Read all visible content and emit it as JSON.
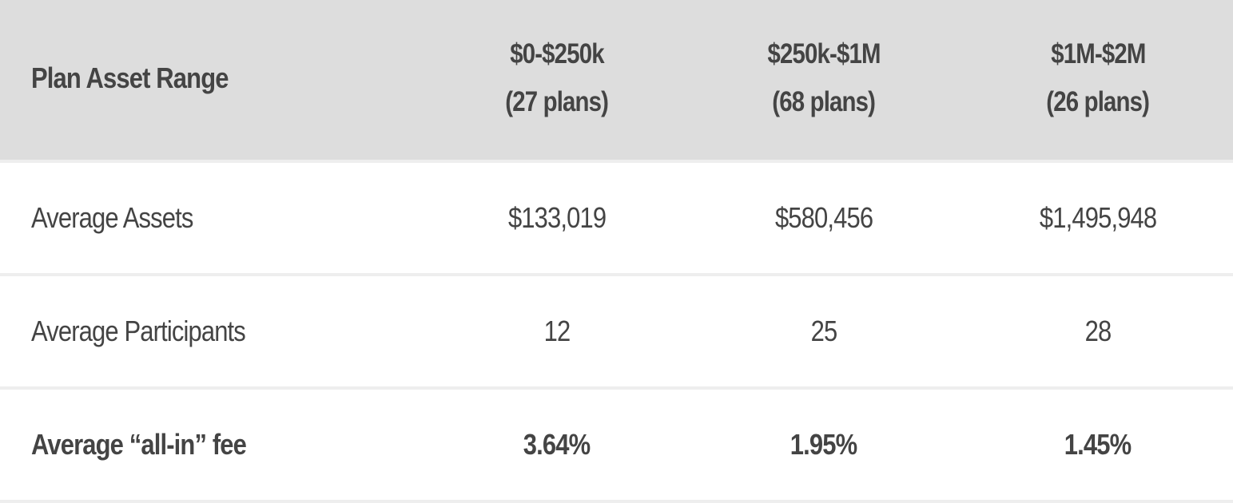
{
  "table": {
    "header": {
      "label": "Plan Asset Range",
      "columns": [
        {
          "range": "$0-$250k",
          "plans": "(27 plans)"
        },
        {
          "range": "$250k-$1M",
          "plans": "(68 plans)"
        },
        {
          "range": "$1M-$2M",
          "plans": "(26 plans)"
        }
      ]
    },
    "rows": [
      {
        "label": "Average Assets",
        "values": [
          "$133,019",
          "$580,456",
          "$1,495,948"
        ]
      },
      {
        "label": "Average Participants",
        "values": [
          "12",
          "25",
          "28"
        ]
      },
      {
        "label": "Average “all-in” fee",
        "values": [
          "3.64%",
          "1.95%",
          "1.45%"
        ]
      }
    ]
  },
  "colors": {
    "header_bg": "#dddddd",
    "row_border": "#eeeeee",
    "text": "#444444",
    "body_bg": "#ffffff"
  }
}
